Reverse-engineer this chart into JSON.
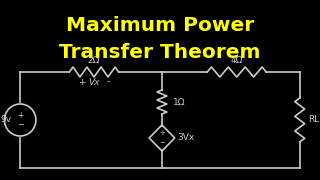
{
  "background_color": "#000000",
  "title_line1": "Maximum Power",
  "title_line2": "Transfer Theorem",
  "title_color": "#FFFF00",
  "title_fontsize": 14.5,
  "circuit_color": "#CCCCCC",
  "label_color": "#CCCCCC",
  "circuit_linewidth": 1.2,
  "labels": {
    "source_voltage": "9v",
    "res1": "2Ω",
    "res2": "4Ω",
    "res3": "1Ω",
    "dep_source": "3Vx",
    "vx_plus": "+",
    "vx_minus": "-",
    "vx_label": "Vx",
    "load": "RL"
  }
}
